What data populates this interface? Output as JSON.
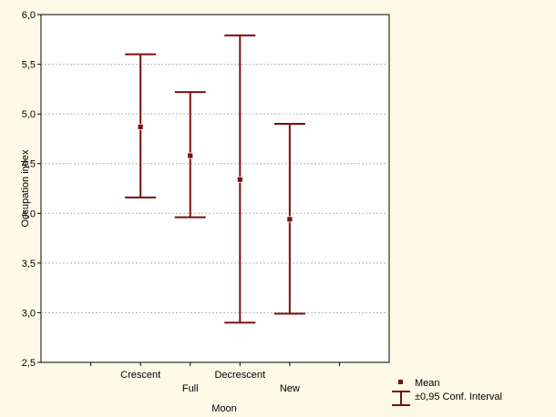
{
  "chart_data": {
    "type": "error-bar",
    "xlabel": "Moon",
    "ylabel": "Occupation index",
    "ylim": [
      2.5,
      6.0
    ],
    "yticks": [
      "2,5",
      "3,0",
      "3,5",
      "4,0",
      "4,5",
      "5,0",
      "5,5",
      "6,0"
    ],
    "categories": [
      "Crescent",
      "Full",
      "Decrescent",
      "New"
    ],
    "means": [
      4.87,
      4.58,
      4.34,
      3.94
    ],
    "lower": [
      4.16,
      3.96,
      2.9,
      2.99
    ],
    "upper": [
      5.6,
      5.22,
      5.79,
      4.9
    ],
    "grid": true,
    "legend_position": "bottom-right",
    "legend": {
      "mean_label": "Mean",
      "ci_label": "±0,95 Conf. Interval"
    },
    "series_color": "#7a0f0f",
    "background_color": "#fdfbe8"
  }
}
